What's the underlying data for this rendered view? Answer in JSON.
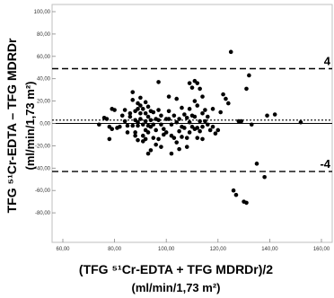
{
  "chart_data": {
    "type": "scatter",
    "title": "",
    "xlabel": "(TFG ⁵¹Cr-EDTA + TFG MDRDr)/2",
    "xlabel_units": "(ml/min/1,73 m²)",
    "ylabel": "TFG ⁵¹Cr-EDTA – TFG MDRDr",
    "ylabel_units": "(ml/min/1,73 m²)",
    "xlim": [
      60,
      160
    ],
    "ylim": [
      -100,
      100
    ],
    "x_ticks": [
      60,
      80,
      100,
      120,
      140,
      160
    ],
    "x_tick_labels": [
      "60,00",
      "80,00",
      "100,00",
      "120,00",
      "140,00",
      "160,00"
    ],
    "y_ticks": [
      100,
      80,
      60,
      40,
      20,
      0,
      -20,
      -40,
      -60,
      -80
    ],
    "y_tick_labels": [
      "100,00",
      "80,00",
      "60,00",
      "40,00",
      "20,00",
      "0,00",
      "-20,00",
      "-40,00",
      "-60,00",
      "-80,00"
    ],
    "grid": false,
    "reference_lines": [
      {
        "kind": "zero",
        "value": 0,
        "style": "solid"
      },
      {
        "kind": "mean",
        "value": 3,
        "style": "dotted",
        "label": ""
      },
      {
        "kind": "upper-limit",
        "value": 49,
        "style": "dashed",
        "label": "4"
      },
      {
        "kind": "lower-limit",
        "value": -43,
        "style": "dashed",
        "label": "-4"
      }
    ],
    "points": [
      [
        74,
        -1
      ],
      [
        76,
        5
      ],
      [
        77,
        4
      ],
      [
        78,
        -3
      ],
      [
        78,
        -14
      ],
      [
        79,
        -5
      ],
      [
        79,
        13
      ],
      [
        80,
        12
      ],
      [
        81,
        -4
      ],
      [
        82,
        -3
      ],
      [
        83,
        7
      ],
      [
        84,
        12
      ],
      [
        84,
        2
      ],
      [
        85,
        -2
      ],
      [
        85,
        -8
      ],
      [
        86,
        9
      ],
      [
        86,
        6
      ],
      [
        87,
        21
      ],
      [
        87,
        28
      ],
      [
        87,
        -2
      ],
      [
        88,
        11
      ],
      [
        88,
        3
      ],
      [
        88,
        -8
      ],
      [
        88,
        -11
      ],
      [
        89,
        18
      ],
      [
        89,
        13
      ],
      [
        89,
        1
      ],
      [
        89,
        -2
      ],
      [
        89,
        -15
      ],
      [
        90,
        23
      ],
      [
        90,
        16
      ],
      [
        90,
        9
      ],
      [
        90,
        4
      ],
      [
        91,
        13
      ],
      [
        91,
        -1
      ],
      [
        91,
        -11
      ],
      [
        91,
        -16
      ],
      [
        92,
        19
      ],
      [
        92,
        9
      ],
      [
        92,
        2
      ],
      [
        92,
        -6
      ],
      [
        92,
        -14
      ],
      [
        93,
        15
      ],
      [
        93,
        6
      ],
      [
        93,
        -2
      ],
      [
        93,
        -8
      ],
      [
        93,
        -27
      ],
      [
        94,
        11
      ],
      [
        94,
        3
      ],
      [
        94,
        -3
      ],
      [
        94,
        -24
      ],
      [
        95,
        10
      ],
      [
        95,
        -1
      ],
      [
        95,
        -13
      ],
      [
        96,
        4
      ],
      [
        96,
        -6
      ],
      [
        96,
        -19
      ],
      [
        97,
        37
      ],
      [
        97,
        12
      ],
      [
        97,
        3
      ],
      [
        97,
        -14
      ],
      [
        98,
        7
      ],
      [
        98,
        -1
      ],
      [
        98,
        -21
      ],
      [
        99,
        -5
      ],
      [
        99,
        -10
      ],
      [
        100,
        4
      ],
      [
        100,
        -8
      ],
      [
        101,
        24
      ],
      [
        101,
        11
      ],
      [
        101,
        4
      ],
      [
        102,
        -1
      ],
      [
        102,
        -11
      ],
      [
        102,
        -27
      ],
      [
        103,
        7
      ],
      [
        103,
        -13
      ],
      [
        104,
        22
      ],
      [
        104,
        1
      ],
      [
        104,
        -17
      ],
      [
        105,
        4
      ],
      [
        105,
        -7
      ],
      [
        105,
        -23
      ],
      [
        106,
        14
      ],
      [
        106,
        -3
      ],
      [
        106,
        -12
      ],
      [
        107,
        8
      ],
      [
        107,
        -4
      ],
      [
        108,
        5
      ],
      [
        108,
        -13
      ],
      [
        108,
        -21
      ],
      [
        109,
        36
      ],
      [
        109,
        13
      ],
      [
        109,
        1
      ],
      [
        109,
        -8
      ],
      [
        110,
        32
      ],
      [
        110,
        7
      ],
      [
        110,
        -3
      ],
      [
        111,
        38
      ],
      [
        111,
        20
      ],
      [
        111,
        6
      ],
      [
        111,
        -5
      ],
      [
        112,
        36
      ],
      [
        112,
        16
      ],
      [
        112,
        -4
      ],
      [
        112,
        -13
      ],
      [
        113,
        31
      ],
      [
        113,
        2
      ],
      [
        113,
        -7
      ],
      [
        114,
        24
      ],
      [
        114,
        9
      ],
      [
        114,
        -3
      ],
      [
        114,
        -14
      ],
      [
        115,
        12
      ],
      [
        115,
        2
      ],
      [
        116,
        -1
      ],
      [
        116,
        6
      ],
      [
        117,
        -6
      ],
      [
        118,
        13
      ],
      [
        118,
        -3
      ],
      [
        119,
        -9
      ],
      [
        120,
        -6
      ],
      [
        121,
        10
      ],
      [
        122,
        26
      ],
      [
        123,
        22
      ],
      [
        124,
        18
      ],
      [
        125,
        64
      ],
      [
        126,
        -60
      ],
      [
        127,
        -64
      ],
      [
        128,
        2
      ],
      [
        129,
        2
      ],
      [
        130,
        -70
      ],
      [
        131,
        -71
      ],
      [
        131,
        31
      ],
      [
        132,
        43
      ],
      [
        133,
        -1
      ],
      [
        135,
        -36
      ],
      [
        138,
        -48
      ],
      [
        139,
        7
      ],
      [
        142,
        8
      ],
      [
        152,
        1
      ]
    ]
  }
}
